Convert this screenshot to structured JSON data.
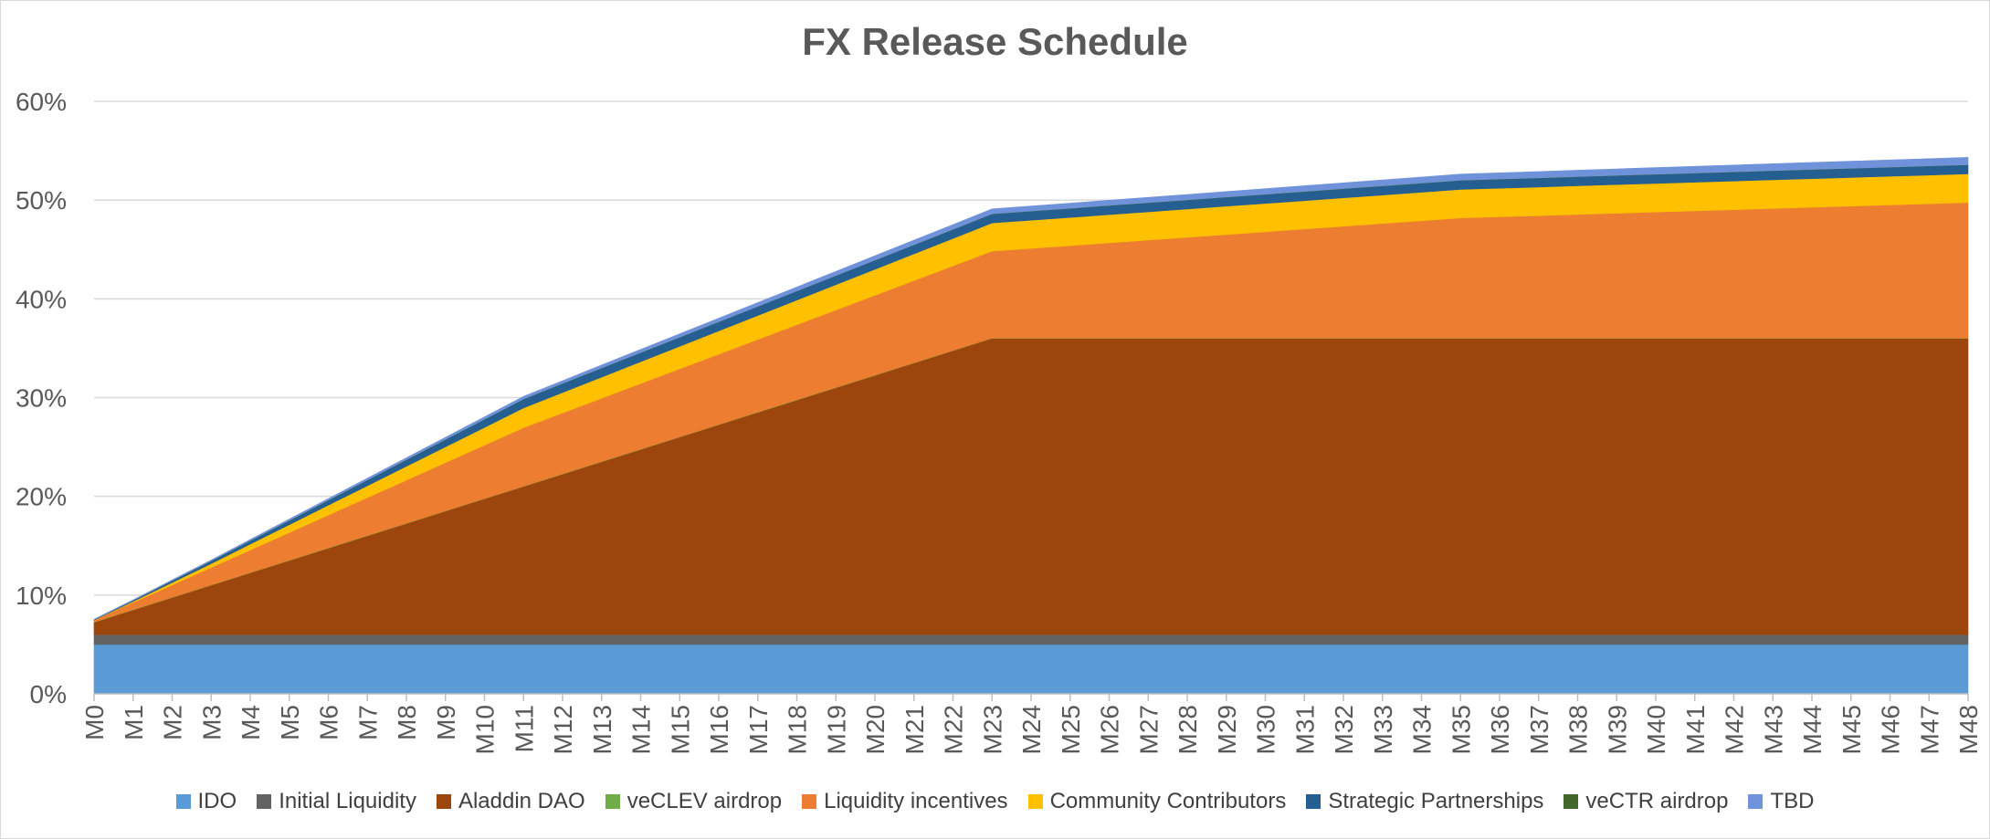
{
  "chart_data": {
    "type": "area",
    "stacked": true,
    "title": "FX Release Schedule",
    "xlabel": "",
    "ylabel": "",
    "ylim": [
      0,
      0.6
    ],
    "y_ticks": [
      0,
      0.1,
      0.2,
      0.3,
      0.4,
      0.5,
      0.6
    ],
    "y_tick_labels": [
      "0%",
      "10%",
      "20%",
      "30%",
      "40%",
      "50%",
      "60%"
    ],
    "grid": true,
    "legend_position": "bottom",
    "categories": [
      "M0",
      "M1",
      "M2",
      "M3",
      "M4",
      "M5",
      "M6",
      "M7",
      "M8",
      "M9",
      "M10",
      "M11",
      "M12",
      "M13",
      "M14",
      "M15",
      "M16",
      "M17",
      "M18",
      "M19",
      "M20",
      "M21",
      "M22",
      "M23",
      "M24",
      "M25",
      "M26",
      "M27",
      "M28",
      "M29",
      "M30",
      "M31",
      "M32",
      "M33",
      "M34",
      "M35",
      "M36",
      "M37",
      "M38",
      "M39",
      "M40",
      "M41",
      "M42",
      "M43",
      "M44",
      "M45",
      "M46",
      "M47",
      "M48"
    ],
    "series": [
      {
        "name": "IDO",
        "color": "#5B9BD5",
        "values": [
          0.05,
          0.05,
          0.05,
          0.05,
          0.05,
          0.05,
          0.05,
          0.05,
          0.05,
          0.05,
          0.05,
          0.05,
          0.05,
          0.05,
          0.05,
          0.05,
          0.05,
          0.05,
          0.05,
          0.05,
          0.05,
          0.05,
          0.05,
          0.05,
          0.05,
          0.05,
          0.05,
          0.05,
          0.05,
          0.05,
          0.05,
          0.05,
          0.05,
          0.05,
          0.05,
          0.05,
          0.05,
          0.05,
          0.05,
          0.05,
          0.05,
          0.05,
          0.05,
          0.05,
          0.05,
          0.05,
          0.05,
          0.05,
          0.05
        ]
      },
      {
        "name": "Initial Liquidity",
        "color": "#636363",
        "values": [
          0.01,
          0.01,
          0.01,
          0.01,
          0.01,
          0.01,
          0.01,
          0.01,
          0.01,
          0.01,
          0.01,
          0.01,
          0.01,
          0.01,
          0.01,
          0.01,
          0.01,
          0.01,
          0.01,
          0.01,
          0.01,
          0.01,
          0.01,
          0.01,
          0.01,
          0.01,
          0.01,
          0.01,
          0.01,
          0.01,
          0.01,
          0.01,
          0.01,
          0.01,
          0.01,
          0.01,
          0.01,
          0.01,
          0.01,
          0.01,
          0.01,
          0.01,
          0.01,
          0.01,
          0.01,
          0.01,
          0.01,
          0.01,
          0.01
        ]
      },
      {
        "name": "Aladdin DAO",
        "color": "#9C450C",
        "values": [
          0.0125,
          0.025,
          0.0375,
          0.05,
          0.0625,
          0.075,
          0.0875,
          0.1,
          0.1125,
          0.125,
          0.1375,
          0.15,
          0.1625,
          0.175,
          0.1875,
          0.2,
          0.2125,
          0.225,
          0.2375,
          0.25,
          0.2625,
          0.275,
          0.2875,
          0.3,
          0.3,
          0.3,
          0.3,
          0.3,
          0.3,
          0.3,
          0.3,
          0.3,
          0.3,
          0.3,
          0.3,
          0.3,
          0.3,
          0.3,
          0.3,
          0.3,
          0.3,
          0.3,
          0.3,
          0.3,
          0.3,
          0.3,
          0.3,
          0.3,
          0.3
        ]
      },
      {
        "name": "veCLEV airdrop",
        "color": "#70AD47",
        "values": [
          0.0003,
          0.0003,
          0.0003,
          0.0003,
          0.0003,
          0.0003,
          0.0003,
          0.0003,
          0.0003,
          0.0003,
          0.0003,
          0.0003,
          0.0003,
          0.0003,
          0.0003,
          0.0003,
          0.0003,
          0.0003,
          0.0003,
          0.0003,
          0.0003,
          0.0003,
          0.0003,
          0.0003,
          0.0003,
          0.0003,
          0.0003,
          0.0003,
          0.0003,
          0.0003,
          0.0003,
          0.0003,
          0.0003,
          0.0003,
          0.0003,
          0.0003,
          0.0003,
          0.0003,
          0.0003,
          0.0003,
          0.0003,
          0.0003,
          0.0003,
          0.0003,
          0.0003,
          0.0003,
          0.0003,
          0.0003,
          0.0003
        ]
      },
      {
        "name": "Liquidity incentives",
        "color": "#ED7D31",
        "values": [
          0.002,
          0.0072,
          0.0124,
          0.0176,
          0.0228,
          0.028,
          0.0332,
          0.0384,
          0.0436,
          0.0488,
          0.054,
          0.0592,
          0.0616,
          0.064,
          0.0664,
          0.0688,
          0.0712,
          0.0736,
          0.076,
          0.0784,
          0.0808,
          0.0832,
          0.0856,
          0.088,
          0.0908,
          0.0936,
          0.0964,
          0.0992,
          0.102,
          0.1048,
          0.1076,
          0.1104,
          0.1132,
          0.116,
          0.1188,
          0.1216,
          0.1228,
          0.124,
          0.1252,
          0.1264,
          0.1276,
          0.1288,
          0.13,
          0.1312,
          0.1324,
          0.1336,
          0.1348,
          0.136,
          0.1372
        ]
      },
      {
        "name": "Community Contributors",
        "color": "#FFC000",
        "values": [
          0.0,
          0.001,
          0.0025,
          0.004,
          0.006,
          0.008,
          0.01,
          0.012,
          0.014,
          0.016,
          0.018,
          0.02,
          0.0207,
          0.0214,
          0.0221,
          0.0228,
          0.0235,
          0.0242,
          0.0249,
          0.0256,
          0.0263,
          0.027,
          0.0277,
          0.0285,
          0.0285,
          0.0285,
          0.0286,
          0.0286,
          0.0286,
          0.0287,
          0.0287,
          0.0287,
          0.0288,
          0.0288,
          0.0288,
          0.0289,
          0.0289,
          0.0289,
          0.029,
          0.029,
          0.029,
          0.029,
          0.029,
          0.029,
          0.029,
          0.029,
          0.029,
          0.029,
          0.029
        ]
      },
      {
        "name": "Strategic Partnerships",
        "color": "#255E91",
        "values": [
          0.0,
          0.0008,
          0.0016,
          0.0024,
          0.0032,
          0.004,
          0.0048,
          0.0056,
          0.0064,
          0.0072,
          0.008,
          0.0088,
          0.0089,
          0.009,
          0.009,
          0.009,
          0.009,
          0.009,
          0.009,
          0.009,
          0.009,
          0.009,
          0.009,
          0.009,
          0.009,
          0.009,
          0.009,
          0.009,
          0.009,
          0.009,
          0.009,
          0.009,
          0.009,
          0.009,
          0.009,
          0.009,
          0.009,
          0.009,
          0.009,
          0.009,
          0.009,
          0.009,
          0.009,
          0.009,
          0.009,
          0.009,
          0.009,
          0.009,
          0.009
        ]
      },
      {
        "name": "veCTR airdrop",
        "color": "#43682B",
        "values": [
          0.0003,
          0.0003,
          0.0003,
          0.0003,
          0.0003,
          0.0003,
          0.0003,
          0.0003,
          0.0003,
          0.0003,
          0.0003,
          0.0003,
          0.0003,
          0.0003,
          0.0003,
          0.0003,
          0.0003,
          0.0003,
          0.0003,
          0.0003,
          0.0003,
          0.0003,
          0.0003,
          0.0003,
          0.0003,
          0.0003,
          0.0003,
          0.0003,
          0.0003,
          0.0003,
          0.0003,
          0.0003,
          0.0003,
          0.0003,
          0.0003,
          0.0003,
          0.0003,
          0.0003,
          0.0003,
          0.0003,
          0.0003,
          0.0003,
          0.0003,
          0.0003,
          0.0003,
          0.0003,
          0.0003,
          0.0003,
          0.0003
        ]
      },
      {
        "name": "TBD",
        "color": "#7092DB",
        "values": [
          0.0004,
          0.0006,
          0.0008,
          0.001,
          0.0012,
          0.0014,
          0.0016,
          0.0018,
          0.002,
          0.0022,
          0.0024,
          0.0026,
          0.0028,
          0.003,
          0.0032,
          0.0034,
          0.0036,
          0.0038,
          0.004,
          0.0042,
          0.0044,
          0.0046,
          0.0048,
          0.005,
          0.0051,
          0.0052,
          0.0053,
          0.0054,
          0.0055,
          0.0056,
          0.0057,
          0.0058,
          0.0059,
          0.006,
          0.0061,
          0.0062,
          0.0063,
          0.0064,
          0.0065,
          0.0066,
          0.0067,
          0.0068,
          0.0069,
          0.007,
          0.0071,
          0.0072,
          0.0073,
          0.0074,
          0.0075
        ]
      }
    ]
  }
}
